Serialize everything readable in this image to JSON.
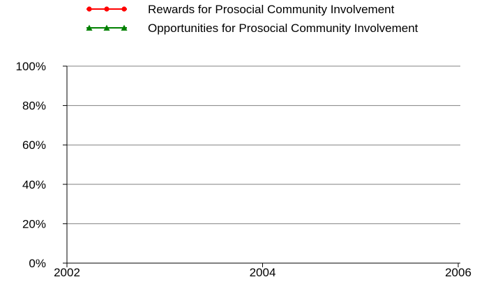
{
  "chart_data": {
    "type": "line",
    "title": "",
    "xlabel": "",
    "ylabel": "",
    "x_ticks": [
      "2002",
      "2004",
      "2006"
    ],
    "xlim": [
      2002,
      2006
    ],
    "y_ticks": [
      "0%",
      "20%",
      "40%",
      "60%",
      "80%",
      "100%"
    ],
    "ylim": [
      0,
      100
    ],
    "y_unit": "%",
    "grid": "horizontal",
    "legend_position": "top",
    "series": [
      {
        "name": "Rewards for Prosocial Community Involvement",
        "color": "#ff0000",
        "marker": "circle",
        "x": [],
        "values": []
      },
      {
        "name": "Opportunities for Prosocial Community Involvement",
        "color": "#008000",
        "marker": "triangle",
        "x": [],
        "values": []
      }
    ]
  }
}
